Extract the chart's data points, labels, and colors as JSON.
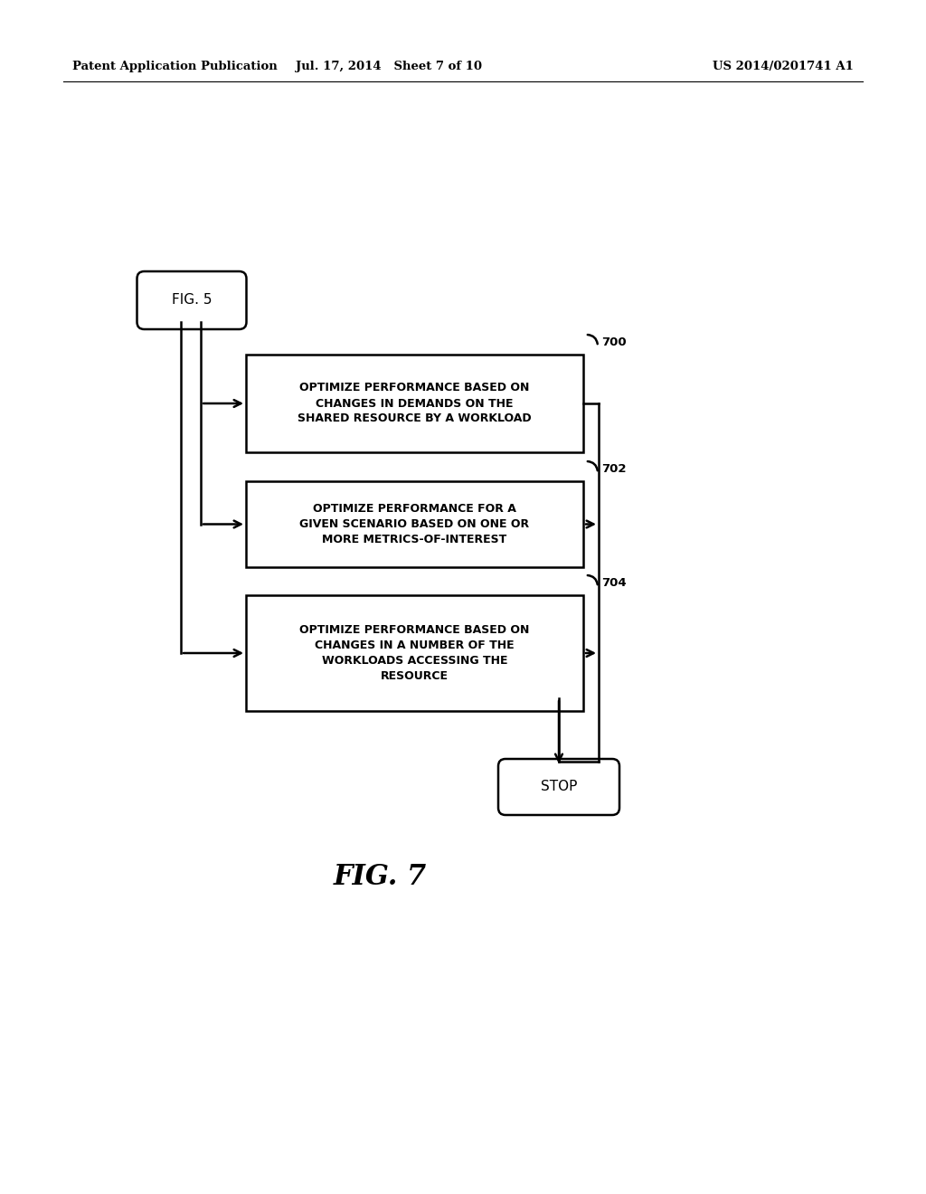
{
  "bg_color": "#ffffff",
  "header_left": "Patent Application Publication",
  "header_mid": "Jul. 17, 2014   Sheet 7 of 10",
  "header_right": "US 2014/0201741 A1",
  "fig5_label": "FIG. 5",
  "stop_label": "STOP",
  "fig_caption": "FIG. 7",
  "box700_label": "OPTIMIZE PERFORMANCE BASED ON\nCHANGES IN DEMANDS ON THE\nSHARED RESOURCE BY A WORKLOAD",
  "box702_label": "OPTIMIZE PERFORMANCE FOR A\nGIVEN SCENARIO BASED ON ONE OR\nMORE METRICS-OF-INTEREST",
  "box704_label": "OPTIMIZE PERFORMANCE BASED ON\nCHANGES IN A NUMBER OF THE\nWORKLOADS ACCESSING THE\nRESOURCE",
  "tag700": "700",
  "tag702": "702",
  "tag704": "704"
}
